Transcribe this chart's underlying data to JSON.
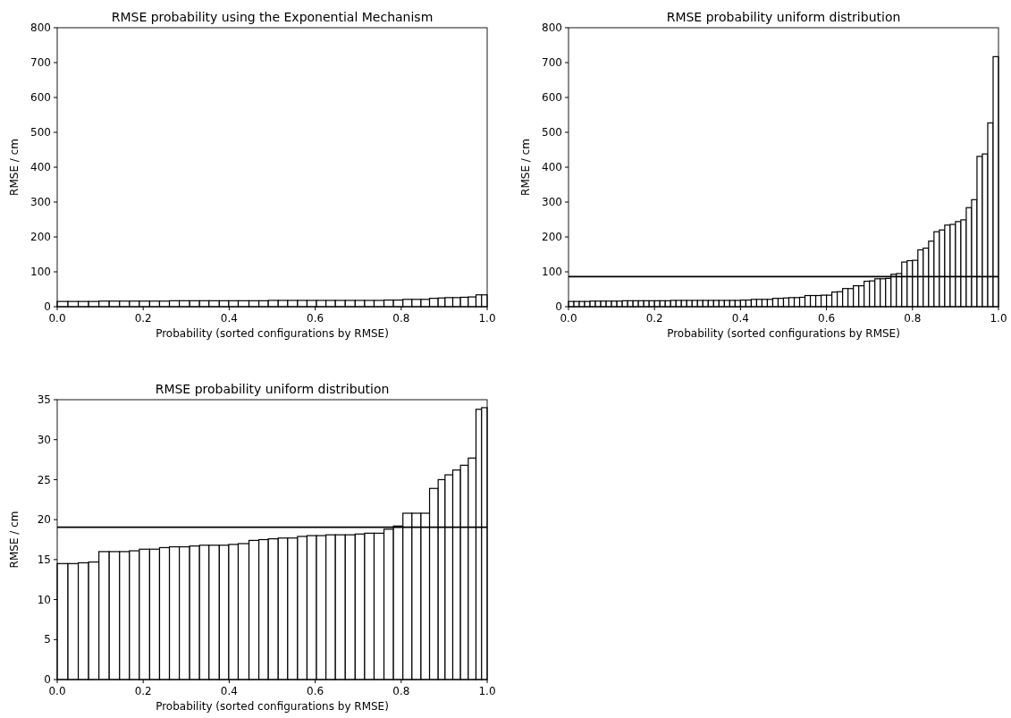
{
  "chart_data": [
    {
      "type": "histogram",
      "title": "RMSE probability using the Exponential Mechanism",
      "xlabel": "Probability (sorted configurations by RMSE)",
      "ylabel": "RMSE / cm",
      "color": "#ffffff",
      "xlim": [
        0,
        1
      ],
      "ylim": [
        0,
        800
      ],
      "xticks": [
        {
          "value": 0,
          "label": "0.0"
        },
        {
          "value": 0.2,
          "label": "0.2"
        },
        {
          "value": 0.4,
          "label": "0.4"
        },
        {
          "value": 0.6,
          "label": "0.6"
        },
        {
          "value": 0.8,
          "label": "0.8"
        },
        {
          "value": 1,
          "label": "1.0"
        }
      ],
      "yticks": [
        0,
        100,
        200,
        300,
        400,
        500,
        600,
        700,
        800
      ],
      "bins": [
        0,
        0.025,
        0.049,
        0.073,
        0.097,
        0.121,
        0.145,
        0.168,
        0.191,
        0.215,
        0.238,
        0.261,
        0.284,
        0.308,
        0.331,
        0.353,
        0.377,
        0.399,
        0.421,
        0.446,
        0.469,
        0.491,
        0.514,
        0.536,
        0.559,
        0.581,
        0.603,
        0.625,
        0.647,
        0.67,
        0.693,
        0.715,
        0.737,
        0.76,
        0.782,
        0.804,
        0.825,
        0.846,
        0.866,
        0.886,
        0.902,
        0.92,
        0.938,
        0.956,
        0.974,
        0.987,
        1
      ],
      "values": [
        15,
        15,
        15,
        15,
        16,
        16,
        16,
        16,
        16,
        16,
        16,
        17,
        17,
        17,
        17,
        17,
        17,
        17,
        17,
        17,
        17,
        18,
        18,
        18,
        18,
        18,
        18,
        18,
        18,
        18,
        18,
        18,
        18,
        19,
        19,
        21,
        21,
        21,
        24,
        25,
        26,
        26,
        27,
        28,
        34,
        34
      ]
    },
    {
      "type": "histogram",
      "title": "RMSE probability uniform distribution",
      "xlabel": "Probability (sorted configurations by RMSE)",
      "ylabel": "RMSE / cm",
      "color": "#ffffff",
      "xlim": [
        0,
        1
      ],
      "ylim": [
        0,
        800
      ],
      "xticks": [
        {
          "value": 0,
          "label": "0.0"
        },
        {
          "value": 0.2,
          "label": "0.2"
        },
        {
          "value": 0.4,
          "label": "0.4"
        },
        {
          "value": 0.6,
          "label": "0.6"
        },
        {
          "value": 0.8,
          "label": "0.8"
        },
        {
          "value": 1,
          "label": "1.0"
        }
      ],
      "yticks": [
        0,
        100,
        200,
        300,
        400,
        500,
        600,
        700,
        800
      ],
      "bins": [
        0,
        0.0125,
        0.025,
        0.0375,
        0.05,
        0.0625,
        0.075,
        0.0875,
        0.1,
        0.1125,
        0.125,
        0.1375,
        0.15,
        0.1625,
        0.175,
        0.1875,
        0.2,
        0.2125,
        0.225,
        0.2375,
        0.25,
        0.2625,
        0.275,
        0.2875,
        0.3,
        0.3125,
        0.325,
        0.3375,
        0.35,
        0.3625,
        0.375,
        0.3875,
        0.4,
        0.4125,
        0.425,
        0.4375,
        0.45,
        0.4625,
        0.475,
        0.4875,
        0.5,
        0.5125,
        0.525,
        0.5375,
        0.55,
        0.5625,
        0.575,
        0.5875,
        0.6,
        0.6125,
        0.625,
        0.6375,
        0.65,
        0.6625,
        0.675,
        0.6875,
        0.7,
        0.7125,
        0.725,
        0.7375,
        0.75,
        0.7625,
        0.775,
        0.7875,
        0.8,
        0.8125,
        0.825,
        0.8375,
        0.85,
        0.8625,
        0.875,
        0.8875,
        0.9,
        0.9125,
        0.925,
        0.9375,
        0.95,
        0.9625,
        0.975,
        0.9875,
        1
      ],
      "values": [
        15,
        15,
        15,
        15,
        16,
        16,
        16,
        16,
        16,
        16,
        17,
        17,
        17,
        17,
        17,
        17,
        17,
        17,
        17,
        18,
        18,
        18,
        18,
        18,
        18,
        18,
        18,
        18,
        18,
        18,
        18,
        18,
        19,
        19,
        21,
        21,
        21,
        21,
        24,
        24,
        25,
        26,
        26,
        27,
        32,
        32,
        32,
        33,
        33,
        42,
        43,
        52,
        52,
        60,
        60,
        73,
        74,
        80,
        80,
        81,
        93,
        95,
        128,
        132,
        133,
        163,
        168,
        188,
        215,
        220,
        234,
        236,
        244,
        249,
        284,
        307,
        431,
        438,
        527,
        717
      ],
      "ref_lines": [
        {
          "axis": "y",
          "value": 86,
          "color": "#000000"
        }
      ]
    },
    {
      "type": "histogram",
      "title": "RMSE probability uniform distribution",
      "xlabel": "Probability (sorted configurations by RMSE)",
      "ylabel": "RMSE / cm",
      "color": "#ffffff",
      "xlim": [
        0,
        1
      ],
      "ylim": [
        0,
        35
      ],
      "xticks": [
        {
          "value": 0,
          "label": "0.0"
        },
        {
          "value": 0.2,
          "label": "0.2"
        },
        {
          "value": 0.4,
          "label": "0.4"
        },
        {
          "value": 0.6,
          "label": "0.6"
        },
        {
          "value": 0.8,
          "label": "0.8"
        },
        {
          "value": 1,
          "label": "1.0"
        }
      ],
      "yticks": [
        0,
        5,
        10,
        15,
        20,
        25,
        30,
        35
      ],
      "bins": [
        0,
        0.025,
        0.049,
        0.073,
        0.097,
        0.121,
        0.145,
        0.168,
        0.191,
        0.215,
        0.238,
        0.261,
        0.284,
        0.308,
        0.331,
        0.353,
        0.377,
        0.399,
        0.421,
        0.446,
        0.469,
        0.491,
        0.514,
        0.536,
        0.559,
        0.581,
        0.603,
        0.625,
        0.647,
        0.67,
        0.693,
        0.715,
        0.737,
        0.76,
        0.782,
        0.804,
        0.825,
        0.846,
        0.866,
        0.886,
        0.902,
        0.92,
        0.938,
        0.956,
        0.974,
        0.987,
        1
      ],
      "values": [
        14.5,
        14.5,
        14.6,
        14.7,
        16.0,
        16.0,
        16.0,
        16.1,
        16.3,
        16.3,
        16.5,
        16.6,
        16.6,
        16.7,
        16.8,
        16.8,
        16.8,
        16.9,
        17.0,
        17.4,
        17.5,
        17.6,
        17.7,
        17.7,
        17.9,
        18.0,
        18.0,
        18.1,
        18.1,
        18.1,
        18.2,
        18.3,
        18.3,
        18.8,
        19.2,
        20.8,
        20.8,
        20.8,
        23.9,
        25.0,
        25.6,
        26.2,
        26.8,
        27.7,
        33.8,
        34.0
      ],
      "ref_lines": [
        {
          "axis": "y",
          "value": 19.05,
          "color": "#000000"
        }
      ]
    }
  ]
}
